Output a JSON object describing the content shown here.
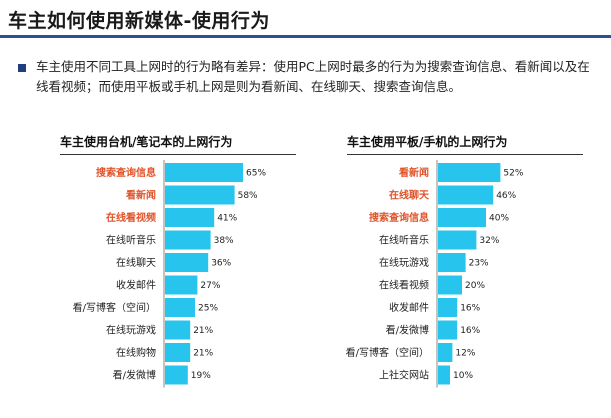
{
  "page": {
    "title": "车主如何使用新媒体-使用行为",
    "intro": "车主使用不同工具上网时的行为略有差异：使用PC上网时最多的行为为搜索查询信息、看新闻以及在线看视频；而使用平板或手机上网是则为看新闻、在线聊天、搜索查询信息。"
  },
  "colors": {
    "bar": "#27c4ee",
    "highlight_label": "#e0542a",
    "title_rule": "#2f4f8f"
  },
  "chart_data": [
    {
      "type": "bar",
      "orientation": "horizontal",
      "title": "车主使用台机/笔记本的上网行为",
      "categories": [
        "搜索查询信息",
        "看新闻",
        "在线看视频",
        "在线听音乐",
        "在线聊天",
        "收发邮件",
        "看/写博客（空间）",
        "在线玩游戏",
        "在线购物",
        "看/发微博"
      ],
      "values": [
        65,
        58,
        41,
        38,
        36,
        27,
        25,
        21,
        21,
        19
      ],
      "value_labels": [
        "65%",
        "58%",
        "41%",
        "38%",
        "36%",
        "27%",
        "25%",
        "21%",
        "21%",
        "19%"
      ],
      "highlighted": [
        true,
        true,
        true,
        false,
        false,
        false,
        false,
        false,
        false,
        false
      ],
      "unit": "%",
      "xlim": [
        0,
        70
      ]
    },
    {
      "type": "bar",
      "orientation": "horizontal",
      "title": "车主使用平板/手机的上网行为",
      "categories": [
        "看新闻",
        "在线聊天",
        "搜索查询信息",
        "在线听音乐",
        "在线玩游戏",
        "在线看视频",
        "收发邮件",
        "看/发微博",
        "看/写博客（空间）",
        "上社交网站"
      ],
      "values": [
        52,
        46,
        40,
        32,
        23,
        20,
        16,
        16,
        12,
        10
      ],
      "value_labels": [
        "52%",
        "46%",
        "40%",
        "32%",
        "23%",
        "20%",
        "16%",
        "16%",
        "12%",
        "10%"
      ],
      "highlighted": [
        true,
        true,
        true,
        false,
        false,
        false,
        false,
        false,
        false,
        false
      ],
      "unit": "%",
      "xlim": [
        0,
        70
      ]
    }
  ]
}
